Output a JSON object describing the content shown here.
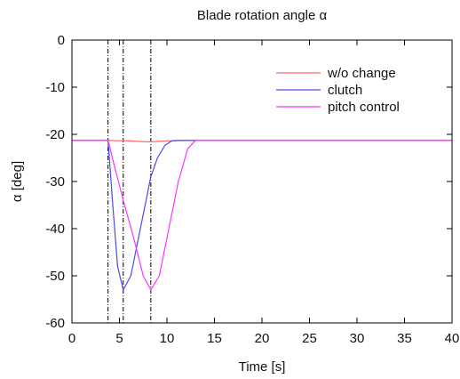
{
  "chart_data": {
    "type": "line",
    "title": "Blade rotation angle α",
    "xlabel": "Time [s]",
    "ylabel": "α [deg]",
    "xlim": [
      0,
      40
    ],
    "ylim": [
      -60,
      0
    ],
    "xticks": [
      0,
      5,
      10,
      15,
      20,
      25,
      30,
      35,
      40
    ],
    "xtick_labels": [
      "0",
      "5",
      "10",
      "15",
      "20",
      "25",
      "30",
      "35",
      "40"
    ],
    "yticks": [
      0,
      -10,
      -20,
      -30,
      -40,
      -50,
      -60
    ],
    "ytick_labels": [
      "0",
      "-10",
      "-20",
      "-30",
      "-40",
      "-50",
      "-60"
    ],
    "grid": false,
    "legend_position": "top-right",
    "vlines": [
      3.8,
      5.4,
      8.3
    ],
    "series": [
      {
        "name": "w/o change",
        "color": "#ff6a6a",
        "x": [
          0,
          3.8,
          6,
          8,
          10,
          12,
          40
        ],
        "y": [
          -21.3,
          -21.3,
          -21.4,
          -21.6,
          -21.4,
          -21.3,
          -21.3
        ]
      },
      {
        "name": "clutch",
        "color": "#4a4aee",
        "x": [
          0,
          3.8,
          4.3,
          4.8,
          5.4,
          6.2,
          7.0,
          7.8,
          8.3,
          9.0,
          9.8,
          10.5,
          11,
          40
        ],
        "y": [
          -21.3,
          -21.3,
          -35,
          -48,
          -53,
          -50,
          -42,
          -34,
          -29,
          -25,
          -22.3,
          -21.4,
          -21.3,
          -21.3
        ]
      },
      {
        "name": "pitch control",
        "color": "#ff33ff",
        "x": [
          0,
          3.8,
          4.5,
          5.4,
          6.5,
          7.5,
          8.3,
          9.2,
          10.2,
          11.2,
          12.2,
          13,
          40
        ],
        "y": [
          -21.3,
          -21.3,
          -27,
          -34,
          -42,
          -50,
          -53,
          -50,
          -40,
          -30,
          -23,
          -21.3,
          -21.3
        ]
      }
    ]
  }
}
